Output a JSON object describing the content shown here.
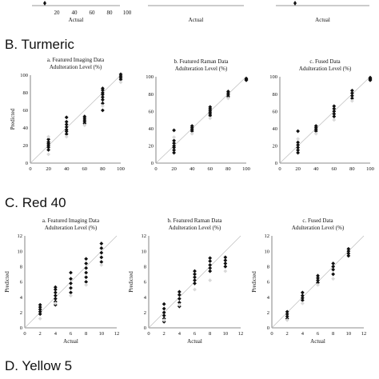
{
  "sections": [
    {
      "label": "B. Turmeric"
    },
    {
      "label": "C. Red 40"
    },
    {
      "label": "D. Yellow 5"
    }
  ],
  "top_partial": {
    "xlabel": "Actual",
    "x_ticks": [
      "20",
      "40",
      "60",
      "80",
      "100"
    ]
  },
  "chart_data": [
    {
      "type": "scatter",
      "group": "B. Turmeric",
      "title": "a. Featured Imaging Data",
      "subtitle": "Adulteration Level (%)",
      "xlabel": "",
      "ylabel": "Predicted",
      "xlim": [
        0,
        100
      ],
      "ylim": [
        0,
        100
      ],
      "x_ticks": [
        0,
        20,
        40,
        60,
        80,
        100
      ],
      "y_ticks": [
        0,
        20,
        40,
        60,
        80,
        100
      ],
      "reference_line": "y = x",
      "series": [
        {
          "color": "#111111",
          "points": [
            [
              20,
              15
            ],
            [
              20,
              18
            ],
            [
              20,
              20
            ],
            [
              20,
              22
            ],
            [
              20,
              24
            ],
            [
              20,
              27
            ],
            [
              40,
              33
            ],
            [
              40,
              36
            ],
            [
              40,
              38
            ],
            [
              40,
              41
            ],
            [
              40,
              44
            ],
            [
              40,
              47
            ],
            [
              40,
              52
            ],
            [
              60,
              45
            ],
            [
              60,
              47
            ],
            [
              60,
              49
            ],
            [
              60,
              51
            ],
            [
              60,
              53
            ],
            [
              80,
              60
            ],
            [
              80,
              68
            ],
            [
              80,
              72
            ],
            [
              80,
              75
            ],
            [
              80,
              78
            ],
            [
              80,
              80
            ],
            [
              80,
              83
            ],
            [
              80,
              85
            ],
            [
              100,
              95
            ],
            [
              100,
              97
            ],
            [
              100,
              99
            ],
            [
              100,
              101
            ]
          ]
        },
        {
          "color": "#d9d9d9",
          "points": [
            [
              20,
              10
            ],
            [
              20,
              30
            ],
            [
              40,
              30
            ],
            [
              60,
              43
            ],
            [
              80,
              65
            ],
            [
              100,
              92
            ]
          ]
        }
      ]
    },
    {
      "type": "scatter",
      "group": "B. Turmeric",
      "title": "b. Featured Raman Data",
      "subtitle": "Adulteration Level (%)",
      "xlabel": "",
      "ylabel": "",
      "xlim": [
        0,
        100
      ],
      "ylim": [
        0,
        100
      ],
      "x_ticks": [
        0,
        20,
        40,
        60,
        80,
        100
      ],
      "y_ticks": [
        0,
        20,
        40,
        60,
        80,
        100
      ],
      "reference_line": "y = x",
      "series": [
        {
          "color": "#111111",
          "points": [
            [
              20,
              12
            ],
            [
              20,
              15
            ],
            [
              20,
              18
            ],
            [
              20,
              20
            ],
            [
              20,
              23
            ],
            [
              20,
              26
            ],
            [
              20,
              38
            ],
            [
              40,
              37
            ],
            [
              40,
              39
            ],
            [
              40,
              41
            ],
            [
              40,
              43
            ],
            [
              60,
              55
            ],
            [
              60,
              57
            ],
            [
              60,
              59
            ],
            [
              60,
              61
            ],
            [
              60,
              63
            ],
            [
              60,
              65
            ],
            [
              80,
              77
            ],
            [
              80,
              79
            ],
            [
              80,
              81
            ],
            [
              80,
              83
            ],
            [
              100,
              96
            ],
            [
              100,
              97
            ],
            [
              100,
              98
            ]
          ]
        },
        {
          "color": "#d9d9d9",
          "points": [
            [
              20,
              30
            ],
            [
              40,
              34
            ],
            [
              60,
              52
            ],
            [
              80,
              75
            ]
          ]
        }
      ]
    },
    {
      "type": "scatter",
      "group": "B. Turmeric",
      "title": "c. Fused Data",
      "subtitle": "Adulteration Level (%)",
      "xlabel": "",
      "ylabel": "",
      "xlim": [
        0,
        100
      ],
      "ylim": [
        0,
        100
      ],
      "x_ticks": [
        0,
        20,
        40,
        60,
        80,
        100
      ],
      "y_ticks": [
        0,
        20,
        40,
        60,
        80,
        100
      ],
      "reference_line": "y = x",
      "series": [
        {
          "color": "#111111",
          "points": [
            [
              20,
              12
            ],
            [
              20,
              15
            ],
            [
              20,
              18
            ],
            [
              20,
              21
            ],
            [
              20,
              24
            ],
            [
              20,
              37
            ],
            [
              40,
              37
            ],
            [
              40,
              39
            ],
            [
              40,
              41
            ],
            [
              40,
              43
            ],
            [
              60,
              54
            ],
            [
              60,
              57
            ],
            [
              60,
              60
            ],
            [
              60,
              63
            ],
            [
              60,
              66
            ],
            [
              80,
              75
            ],
            [
              80,
              78
            ],
            [
              80,
              81
            ],
            [
              80,
              84
            ],
            [
              100,
              96
            ],
            [
              100,
              97
            ],
            [
              100,
              98
            ],
            [
              100,
              99
            ]
          ]
        },
        {
          "color": "#d9d9d9",
          "points": [
            [
              20,
              28
            ],
            [
              40,
              34
            ],
            [
              60,
              50
            ],
            [
              80,
              72
            ]
          ]
        }
      ]
    },
    {
      "type": "scatter",
      "group": "C. Red 40",
      "title": "a. Featured Imaging Data",
      "subtitle": "Adulteration Level (%)",
      "xlabel": "Actual",
      "ylabel": "Predicted",
      "xlim": [
        0,
        12
      ],
      "ylim": [
        0,
        12
      ],
      "x_ticks": [
        0,
        2,
        4,
        6,
        8,
        10,
        12
      ],
      "y_ticks": [
        0,
        2,
        4,
        6,
        8,
        10,
        12
      ],
      "reference_line": "y = x",
      "series": [
        {
          "color": "#111111",
          "points": [
            [
              2,
              1.8
            ],
            [
              2,
              2.1
            ],
            [
              2,
              2.4
            ],
            [
              2,
              2.7
            ],
            [
              2,
              3.0
            ],
            [
              4,
              3.0
            ],
            [
              4,
              3.4
            ],
            [
              4,
              3.8
            ],
            [
              4,
              4.2
            ],
            [
              4,
              4.6
            ],
            [
              4,
              5.0
            ],
            [
              4,
              5.3
            ],
            [
              6,
              4.6
            ],
            [
              6,
              5.2
            ],
            [
              6,
              5.8
            ],
            [
              6,
              6.4
            ],
            [
              6,
              7.2
            ],
            [
              8,
              6.0
            ],
            [
              8,
              6.6
            ],
            [
              8,
              7.2
            ],
            [
              8,
              7.8
            ],
            [
              8,
              8.4
            ],
            [
              8,
              9.0
            ],
            [
              10,
              8.6
            ],
            [
              10,
              9.2
            ],
            [
              10,
              9.8
            ],
            [
              10,
              10.4
            ],
            [
              10,
              11.0
            ]
          ]
        },
        {
          "color": "#d9d9d9",
          "points": [
            [
              2,
              1.2
            ],
            [
              4,
              3.2
            ],
            [
              6,
              4.2
            ],
            [
              8,
              5.6
            ],
            [
              10,
              8.2
            ]
          ]
        }
      ]
    },
    {
      "type": "scatter",
      "group": "C. Red 40",
      "title": "b. Featured Raman Data",
      "subtitle": "Adulteration Level (%)",
      "xlabel": "Actual",
      "ylabel": "Predicted",
      "xlim": [
        0,
        12
      ],
      "ylim": [
        0,
        12
      ],
      "x_ticks": [
        0,
        2,
        4,
        6,
        8,
        10,
        12
      ],
      "y_ticks": [
        0,
        2,
        4,
        6,
        8,
        10,
        12
      ],
      "reference_line": "y = x",
      "series": [
        {
          "color": "#111111",
          "points": [
            [
              2,
              0.8
            ],
            [
              2,
              1.2
            ],
            [
              2,
              1.6
            ],
            [
              2,
              2.0
            ],
            [
              2,
              2.5
            ],
            [
              2,
              3.1
            ],
            [
              4,
              2.8
            ],
            [
              4,
              3.3
            ],
            [
              4,
              3.8
            ],
            [
              4,
              4.3
            ],
            [
              4,
              4.7
            ],
            [
              6,
              5.8
            ],
            [
              6,
              6.2
            ],
            [
              6,
              6.6
            ],
            [
              6,
              7.0
            ],
            [
              6,
              7.4
            ],
            [
              8,
              7.4
            ],
            [
              8,
              7.8
            ],
            [
              8,
              8.2
            ],
            [
              8,
              8.7
            ],
            [
              8,
              9.1
            ],
            [
              10,
              8.0
            ],
            [
              10,
              8.4
            ],
            [
              10,
              8.8
            ],
            [
              10,
              9.2
            ]
          ]
        },
        {
          "color": "#d9d9d9",
          "points": [
            [
              2,
              1.0
            ],
            [
              4,
              3.0
            ],
            [
              6,
              5.0
            ],
            [
              8,
              6.2
            ],
            [
              10,
              7.4
            ]
          ]
        }
      ]
    },
    {
      "type": "scatter",
      "group": "C. Red 40",
      "title": "c. Fused Data",
      "subtitle": "Adulteration Level (%)",
      "xlabel": "Actual",
      "ylabel": "Predicted",
      "xlim": [
        0,
        12
      ],
      "ylim": [
        0,
        12
      ],
      "x_ticks": [
        0,
        2,
        4,
        6,
        8,
        10,
        12
      ],
      "y_ticks": [
        0,
        2,
        4,
        6,
        8,
        10,
        12
      ],
      "reference_line": "y = x",
      "series": [
        {
          "color": "#111111",
          "points": [
            [
              2,
              1.2
            ],
            [
              2,
              1.5
            ],
            [
              2,
              1.8
            ],
            [
              2,
              2.1
            ],
            [
              4,
              3.6
            ],
            [
              4,
              3.9
            ],
            [
              4,
              4.2
            ],
            [
              4,
              4.6
            ],
            [
              6,
              5.9
            ],
            [
              6,
              6.2
            ],
            [
              6,
              6.5
            ],
            [
              6,
              6.8
            ],
            [
              8,
              7.0
            ],
            [
              8,
              7.6
            ],
            [
              8,
              8.0
            ],
            [
              8,
              8.4
            ],
            [
              10,
              9.4
            ],
            [
              10,
              9.7
            ],
            [
              10,
              10.0
            ],
            [
              10,
              10.3
            ]
          ]
        },
        {
          "color": "#d9d9d9",
          "points": [
            [
              2,
              1.0
            ],
            [
              4,
              3.2
            ],
            [
              6,
              5.6
            ],
            [
              8,
              6.4
            ]
          ]
        }
      ]
    }
  ]
}
